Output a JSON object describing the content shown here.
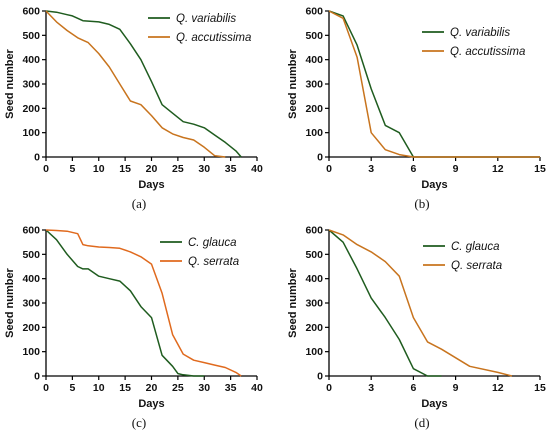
{
  "chart_data": [
    {
      "type": "line",
      "panel_label": "(a)",
      "xlabel": "Days",
      "ylabel": "Seed number",
      "xlim": [
        0,
        40
      ],
      "ylim": [
        0,
        600
      ],
      "xticks": [
        0,
        5,
        10,
        15,
        20,
        25,
        30,
        35,
        40
      ],
      "yticks": [
        0,
        100,
        200,
        300,
        400,
        500,
        600
      ],
      "legend_position": "top-right",
      "series": [
        {
          "name": "Q. variabilis",
          "color": "#1f5c1f",
          "x": [
            0,
            2,
            4,
            5,
            6,
            7,
            10,
            12,
            14,
            16,
            18,
            20,
            22,
            24,
            26,
            28,
            30,
            32,
            34,
            36,
            37
          ],
          "y": [
            600,
            595,
            585,
            580,
            570,
            560,
            555,
            545,
            525,
            465,
            400,
            310,
            215,
            180,
            145,
            135,
            120,
            90,
            60,
            25,
            0
          ]
        },
        {
          "name": "Q. accutissima",
          "color": "#c8741e",
          "x": [
            0,
            2,
            4,
            6,
            7,
            8,
            10,
            12,
            14,
            16,
            18,
            20,
            22,
            24,
            26,
            28,
            30,
            32,
            34
          ],
          "y": [
            600,
            555,
            520,
            490,
            480,
            470,
            425,
            370,
            300,
            230,
            215,
            170,
            120,
            95,
            80,
            70,
            40,
            5,
            0
          ]
        }
      ]
    },
    {
      "type": "line",
      "panel_label": "(b)",
      "xlabel": "Days",
      "ylabel": "Seed number",
      "xlim": [
        0,
        15
      ],
      "ylim": [
        0,
        600
      ],
      "xticks": [
        0,
        3,
        6,
        9,
        12,
        15
      ],
      "yticks": [
        0,
        100,
        200,
        300,
        400,
        500,
        600
      ],
      "legend_position": "top-right",
      "series": [
        {
          "name": "Q. variabilis",
          "color": "#1f5c1f",
          "x": [
            0,
            1,
            2,
            3,
            4,
            5,
            6,
            7,
            15
          ],
          "y": [
            600,
            580,
            460,
            280,
            130,
            100,
            0,
            0,
            0
          ]
        },
        {
          "name": "Q. accutissima",
          "color": "#c8741e",
          "x": [
            0,
            1,
            2,
            3,
            4,
            5,
            6,
            7,
            15
          ],
          "y": [
            600,
            570,
            410,
            100,
            30,
            10,
            0,
            0,
            0
          ]
        }
      ]
    },
    {
      "type": "line",
      "panel_label": "(c)",
      "xlabel": "Days",
      "ylabel": "Seed number",
      "xlim": [
        0,
        40
      ],
      "ylim": [
        0,
        600
      ],
      "xticks": [
        0,
        5,
        10,
        15,
        20,
        25,
        30,
        35,
        40
      ],
      "yticks": [
        0,
        100,
        200,
        300,
        400,
        500,
        600
      ],
      "legend_position": "top-right",
      "series": [
        {
          "name": "C. glauca",
          "color": "#1f5c1f",
          "x": [
            0,
            2,
            4,
            6,
            7,
            8,
            10,
            12,
            14,
            16,
            18,
            20,
            22,
            24,
            25,
            26,
            28,
            30
          ],
          "y": [
            600,
            560,
            500,
            450,
            440,
            440,
            410,
            400,
            390,
            350,
            285,
            240,
            85,
            40,
            10,
            5,
            0,
            0
          ]
        },
        {
          "name": "Q. serrata",
          "color": "#e06a1e",
          "x": [
            0,
            2,
            4,
            6,
            7,
            8,
            10,
            12,
            14,
            16,
            18,
            20,
            22,
            24,
            26,
            28,
            30,
            32,
            34,
            36,
            37
          ],
          "y": [
            600,
            598,
            595,
            585,
            540,
            535,
            530,
            528,
            525,
            510,
            490,
            460,
            340,
            170,
            90,
            65,
            55,
            45,
            35,
            15,
            0
          ]
        }
      ]
    },
    {
      "type": "line",
      "panel_label": "(d)",
      "xlabel": "Days",
      "ylabel": "Seed number",
      "xlim": [
        0,
        15
      ],
      "ylim": [
        0,
        600
      ],
      "xticks": [
        0,
        3,
        6,
        9,
        12,
        15
      ],
      "yticks": [
        0,
        100,
        200,
        300,
        400,
        500,
        600
      ],
      "legend_position": "top-right",
      "series": [
        {
          "name": "C. glauca",
          "color": "#1f5c1f",
          "x": [
            0,
            1,
            2,
            3,
            4,
            5,
            6,
            7,
            8
          ],
          "y": [
            600,
            550,
            440,
            320,
            240,
            150,
            30,
            0,
            0
          ]
        },
        {
          "name": "Q. serrata",
          "color": "#c8741e",
          "x": [
            0,
            1,
            2,
            3,
            4,
            5,
            6,
            7,
            8,
            10,
            12,
            13
          ],
          "y": [
            600,
            580,
            540,
            510,
            470,
            410,
            240,
            140,
            110,
            40,
            15,
            0
          ]
        }
      ]
    }
  ]
}
